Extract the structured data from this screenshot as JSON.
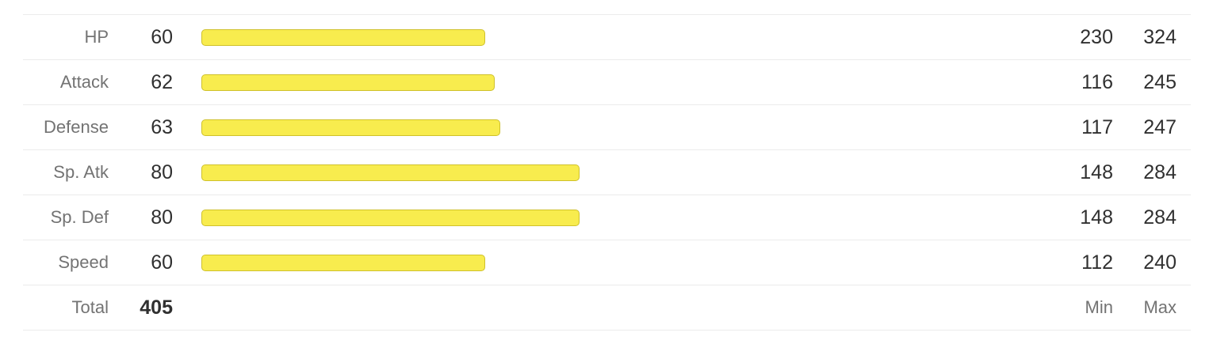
{
  "stats": [
    {
      "name": "HP",
      "base": "60",
      "min": "230",
      "max": "324",
      "bar_fraction": 0.333
    },
    {
      "name": "Attack",
      "base": "62",
      "min": "116",
      "max": "245",
      "bar_fraction": 0.344
    },
    {
      "name": "Defense",
      "base": "63",
      "min": "117",
      "max": "247",
      "bar_fraction": 0.35
    },
    {
      "name": "Sp. Atk",
      "base": "80",
      "min": "148",
      "max": "284",
      "bar_fraction": 0.444
    },
    {
      "name": "Sp. Def",
      "base": "80",
      "min": "148",
      "max": "284",
      "bar_fraction": 0.444
    },
    {
      "name": "Speed",
      "base": "60",
      "min": "112",
      "max": "240",
      "bar_fraction": 0.333
    }
  ],
  "total": {
    "label": "Total",
    "value": "405",
    "min_label": "Min",
    "max_label": "Max"
  },
  "colors": {
    "bar_fill": "#f8ec4e",
    "bar_border": "#cfc12b"
  }
}
